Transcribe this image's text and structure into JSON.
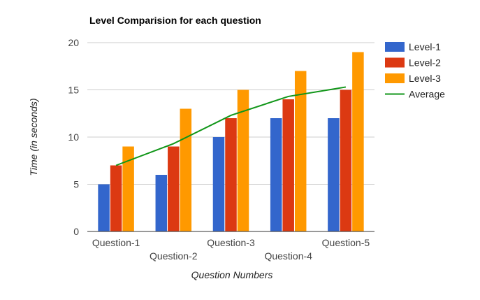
{
  "chart_data": {
    "type": "bar",
    "title": "Level Comparision for each question",
    "xlabel": "Question Numbers",
    "ylabel": "Time (in seconds)",
    "categories": [
      "Question-1",
      "Question-2",
      "Question-3",
      "Question-4",
      "Question-5"
    ],
    "series": [
      {
        "name": "Level-1",
        "type": "bar",
        "color": "#3366cc",
        "values": [
          5,
          6,
          10,
          12,
          12
        ]
      },
      {
        "name": "Level-2",
        "type": "bar",
        "color": "#dc3912",
        "values": [
          7,
          9,
          12,
          14,
          15
        ]
      },
      {
        "name": "Level-3",
        "type": "bar",
        "color": "#ff9900",
        "values": [
          9,
          13,
          15,
          17,
          19
        ]
      },
      {
        "name": "Average",
        "type": "line",
        "color": "#109618",
        "values": [
          7,
          9.3,
          12.3,
          14.3,
          15.3
        ]
      }
    ],
    "ylim": [
      0,
      20
    ],
    "yticks": [
      0,
      5,
      10,
      15,
      20
    ],
    "grid": true,
    "legend_position": "right"
  }
}
